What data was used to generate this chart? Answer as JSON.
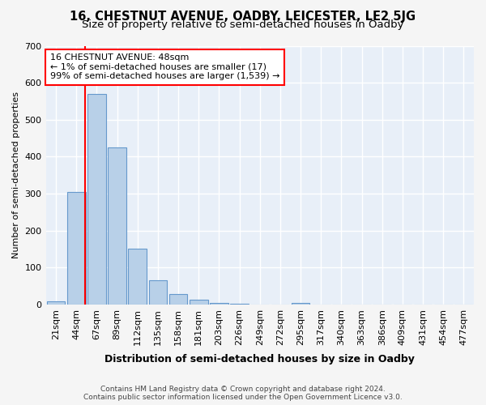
{
  "title": "16, CHESTNUT AVENUE, OADBY, LEICESTER, LE2 5JG",
  "subtitle": "Size of property relative to semi-detached houses in Oadby",
  "xlabel": "Distribution of semi-detached houses by size in Oadby",
  "ylabel": "Number of semi-detached properties",
  "bar_labels": [
    "21sqm",
    "44sqm",
    "67sqm",
    "89sqm",
    "112sqm",
    "135sqm",
    "158sqm",
    "181sqm",
    "203sqm",
    "226sqm",
    "249sqm",
    "272sqm",
    "295sqm",
    "317sqm",
    "340sqm",
    "363sqm",
    "386sqm",
    "409sqm",
    "431sqm",
    "454sqm",
    "477sqm"
  ],
  "bar_values": [
    8,
    305,
    570,
    425,
    152,
    65,
    28,
    13,
    4,
    1,
    0,
    0,
    4,
    0,
    0,
    0,
    0,
    0,
    0,
    0,
    0
  ],
  "bar_color": "#b8d0e8",
  "bar_edge_color": "#6699cc",
  "annotation_text": "16 CHESTNUT AVENUE: 48sqm\n← 1% of semi-detached houses are smaller (17)\n99% of semi-detached houses are larger (1,539) →",
  "annotation_box_color": "white",
  "annotation_box_edge_color": "red",
  "property_line_color": "red",
  "ylim": [
    0,
    700
  ],
  "yticks": [
    0,
    100,
    200,
    300,
    400,
    500,
    600,
    700
  ],
  "footer_line1": "Contains HM Land Registry data © Crown copyright and database right 2024.",
  "footer_line2": "Contains public sector information licensed under the Open Government Licence v3.0.",
  "background_color": "#f5f5f5",
  "plot_bg_color": "#e8eff8",
  "grid_color": "white",
  "title_fontsize": 10.5,
  "subtitle_fontsize": 9.5,
  "xlabel_fontsize": 9,
  "ylabel_fontsize": 8,
  "tick_fontsize": 8,
  "annotation_fontsize": 8,
  "footer_fontsize": 6.5
}
